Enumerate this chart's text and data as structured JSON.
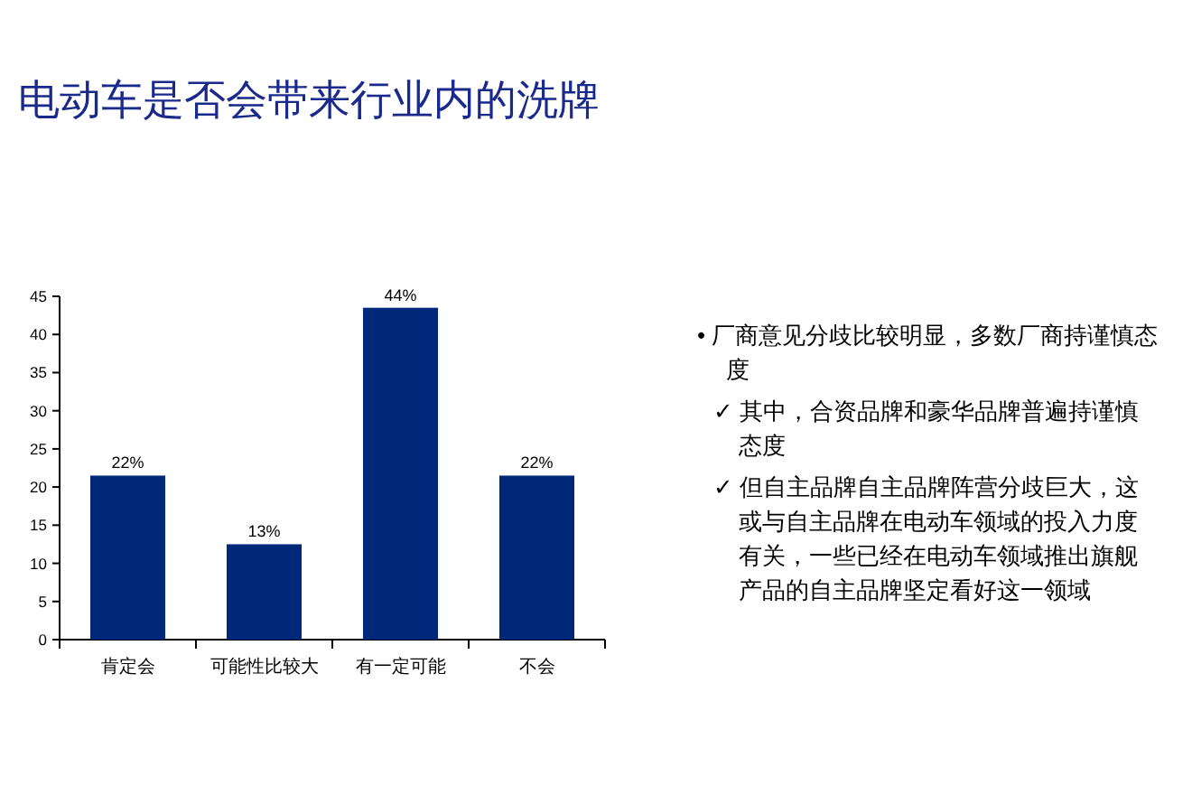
{
  "chart_data": {
    "type": "bar",
    "title": "电动车是否会带来行业内的洗牌",
    "categories": [
      "肯定会",
      "可能性比较大",
      "有一定可能",
      "不会"
    ],
    "values": [
      21.5,
      12.5,
      43.5,
      21.5
    ],
    "value_labels": [
      "22%",
      "13%",
      "44%",
      "22%"
    ],
    "color": "#00287a",
    "ylim": [
      0,
      45
    ],
    "yticks": [
      0,
      5,
      10,
      15,
      20,
      25,
      30,
      35,
      40,
      45
    ],
    "annotations": [
      "• 厂商意见分歧比较明显，多数厂商持谨慎态度",
      "✓ 其中，合资品牌和豪华品牌普遍持谨慎态度",
      "✓ 但自主品牌自主品牌阵营分歧巨大，这或与自主品牌在电动车领域的投入力度有关，一些已经在电动车领域推出旗舰产品的自主品牌坚定看好这一领域"
    ]
  }
}
